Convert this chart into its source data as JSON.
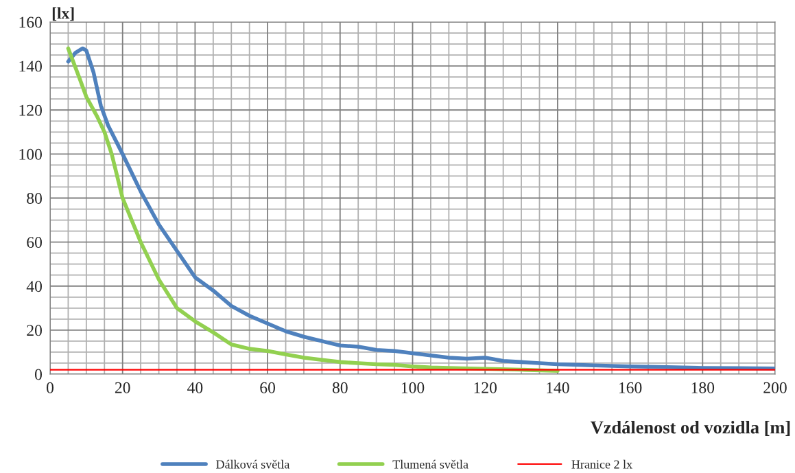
{
  "chart_data": {
    "type": "line",
    "xlabel": "Vzdálenost od vozidla [m]",
    "ylabel": "[lx]",
    "xlim": [
      0,
      200
    ],
    "xticks": [
      0,
      20,
      40,
      60,
      80,
      100,
      120,
      140,
      160,
      180,
      200
    ],
    "ylim": [
      0,
      160
    ],
    "yticks": [
      0,
      20,
      40,
      60,
      80,
      100,
      120,
      140,
      160
    ],
    "grid": true,
    "legend": "bottom",
    "marker": "none",
    "line_style": "solid",
    "series": [
      {
        "name": "Dálková světla",
        "color": "#4f81bd",
        "x": [
          5,
          7,
          9,
          10,
          12,
          14,
          16,
          20,
          25,
          30,
          35,
          40,
          45,
          50,
          55,
          60,
          65,
          70,
          75,
          80,
          85,
          90,
          95,
          100,
          105,
          110,
          115,
          120,
          125,
          130,
          135,
          140,
          150,
          160,
          170,
          180,
          190,
          200
        ],
        "values": [
          142,
          146,
          148,
          147,
          137,
          122,
          113,
          100,
          83,
          68,
          56,
          44,
          38,
          31,
          26.5,
          23,
          19.5,
          17,
          15,
          13,
          12.5,
          11,
          10.5,
          9.5,
          8.5,
          7.5,
          7,
          7.5,
          6,
          5.5,
          5,
          4.5,
          4,
          3.5,
          3.2,
          2.8,
          2.7,
          2.6
        ]
      },
      {
        "name": "Tlumená světla",
        "color": "#92d050",
        "x": [
          5,
          8,
          10,
          13,
          15,
          17,
          20,
          25,
          30,
          35,
          40,
          45,
          50,
          55,
          60,
          65,
          70,
          75,
          80,
          85,
          90,
          95,
          100,
          105,
          110,
          120,
          130,
          140
        ],
        "values": [
          148,
          135,
          126,
          117,
          110,
          100,
          80,
          60,
          43,
          30,
          24,
          19,
          13.5,
          11.5,
          10.5,
          9,
          7.5,
          6.5,
          5.5,
          5,
          4.5,
          4.2,
          3.5,
          3,
          2.8,
          2.4,
          2,
          1.5
        ]
      },
      {
        "name": "Hranice 2 lx",
        "color": "#ff0000",
        "x": [
          0,
          200
        ],
        "values": [
          2,
          2
        ]
      }
    ]
  }
}
